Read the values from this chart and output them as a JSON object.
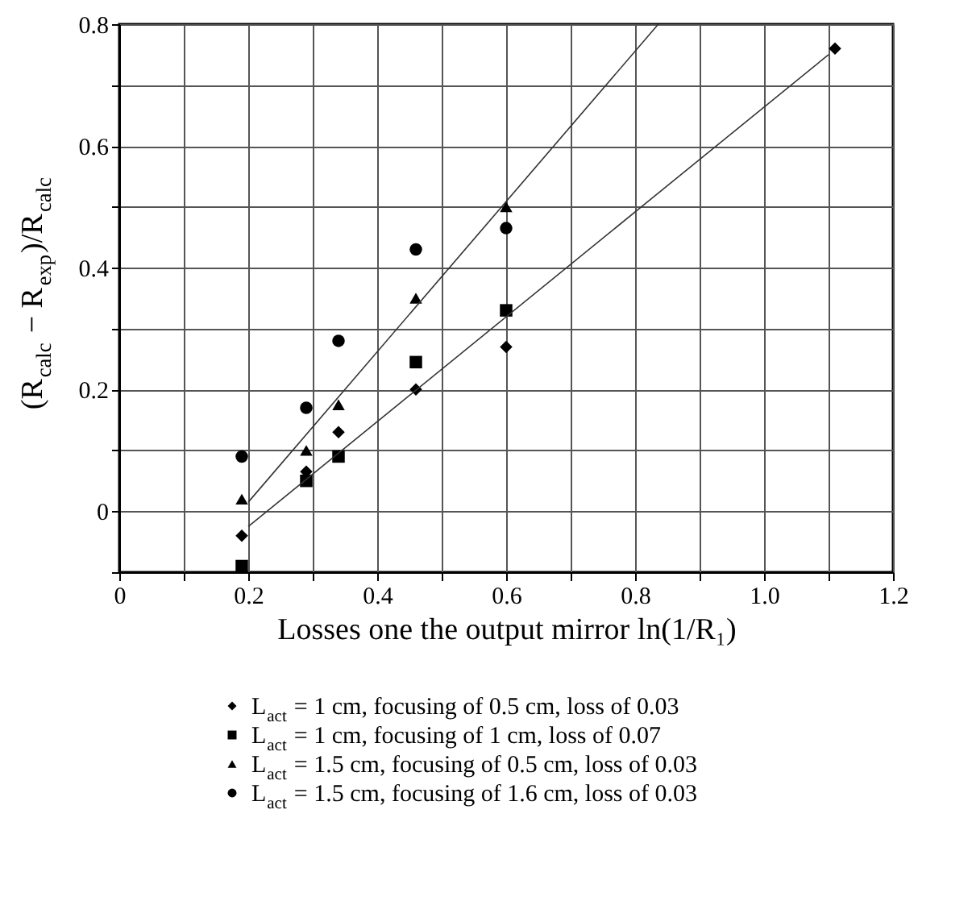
{
  "chart_data": {
    "type": "scatter",
    "xlabel": "Losses one the output mirror ln(1/R₁)",
    "ylabel": "(R$_{calc}$ − R$_{exp}$)/R$_{calc}$",
    "xlim": [
      0,
      1.2
    ],
    "ylim": [
      -0.1,
      0.8
    ],
    "xticks": [
      0,
      {
        "value": 0.1,
        "label": null
      },
      0.2,
      {
        "value": 0.3,
        "label": null
      },
      0.4,
      {
        "value": 0.5,
        "label": null
      },
      0.6,
      {
        "value": 0.7,
        "label": null
      },
      0.8,
      {
        "value": 0.9,
        "label": null
      },
      {
        "value": 1,
        "label": "1.0"
      },
      {
        "value": 1.1,
        "label": null
      },
      1.2
    ],
    "yticks": [
      {
        "value": -0.1,
        "label": null
      },
      0,
      {
        "value": 0.1,
        "label": null
      },
      0.2,
      {
        "value": 0.3,
        "label": null
      },
      0.4,
      {
        "value": 0.5,
        "label": null
      },
      0.6,
      {
        "value": 0.7,
        "label": null
      },
      0.8
    ],
    "grid": true,
    "legend": "bottom",
    "series": [
      {
        "name": "L$_{act}$ = 1 cm, focusing of 0.5 cm, loss of 0.03",
        "color": "#000000",
        "marker": "diamond",
        "x": [
          0.19,
          0.29,
          0.34,
          0.46,
          0.6,
          1.11
        ],
        "values": [
          -0.04,
          0.065,
          0.13,
          0.2,
          0.27,
          0.76
        ]
      },
      {
        "name": "L$_{act}$ = 1 cm, focusing of 1 cm, loss of 0.07",
        "color": "#000000",
        "marker": "square",
        "x": [
          0.19,
          0.29,
          0.34,
          0.46,
          0.6
        ],
        "values": [
          -0.09,
          0.05,
          0.09,
          0.245,
          0.33
        ]
      },
      {
        "name": "L$_{act}$ = 1.5 cm, focusing of 0.5 cm, loss of 0.03",
        "color": "#000000",
        "marker": "triangle",
        "x": [
          0.19,
          0.29,
          0.34,
          0.46,
          0.6
        ],
        "values": [
          0.02,
          0.1,
          0.175,
          0.35,
          0.5
        ]
      },
      {
        "name": "L$_{act}$ = 1.5 cm, focusing of 1.6 cm, loss of 0.03",
        "color": "#000000",
        "marker": "circle",
        "x": [
          0.19,
          0.29,
          0.34,
          0.46,
          0.6
        ],
        "values": [
          0.09,
          0.17,
          0.28,
          0.43,
          0.465
        ]
      },
      {
        "type": "line",
        "color": "#333333",
        "marker": "none",
        "line_style": "solid",
        "x": [
          0.2,
          0.836
        ],
        "values": [
          0.015,
          0.8
        ]
      },
      {
        "type": "line",
        "color": "#333333",
        "marker": "none",
        "line_style": "solid",
        "x": [
          0.2,
          1.1
        ],
        "values": [
          -0.025,
          0.75
        ]
      }
    ]
  }
}
